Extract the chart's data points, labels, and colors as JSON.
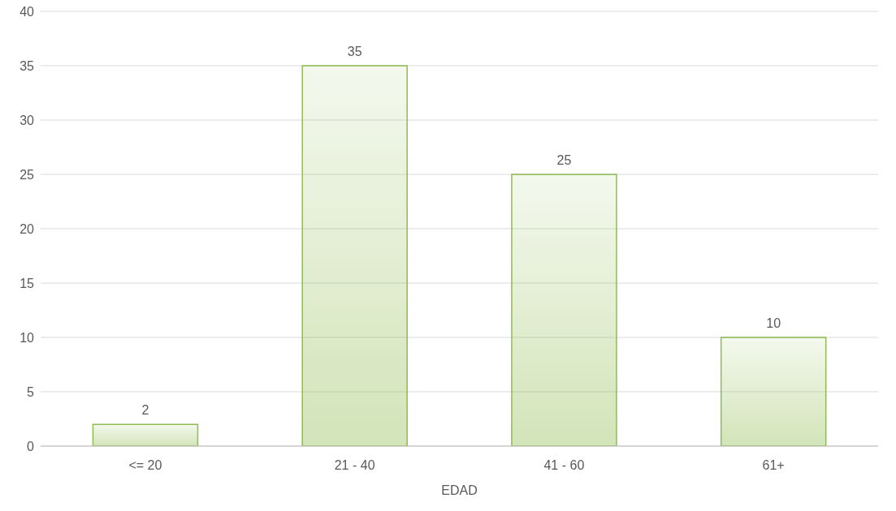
{
  "chart_data": {
    "type": "bar",
    "xlabel": "EDAD",
    "categories": [
      "<= 20",
      "21 - 40",
      "41 - 60",
      "61+"
    ],
    "values": [
      2,
      35,
      25,
      10
    ],
    "color": "#8fbc4f",
    "ylim": [
      0,
      40
    ],
    "yticks": [
      0,
      5,
      10,
      15,
      20,
      25,
      30,
      35,
      40
    ],
    "grid": "y",
    "data_labels": true
  }
}
